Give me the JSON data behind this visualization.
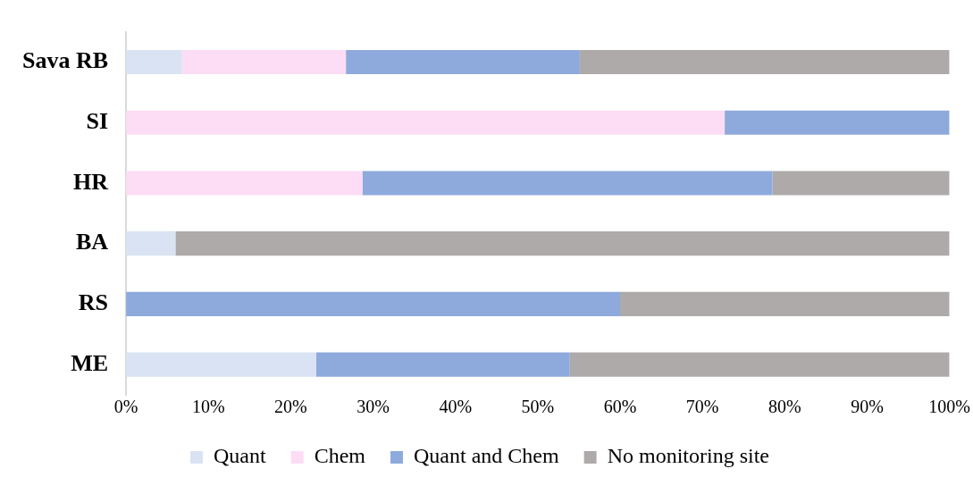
{
  "chart_data": {
    "type": "bar",
    "orientation": "horizontal",
    "stacked": true,
    "categories": [
      "Sava RB",
      "SI",
      "HR",
      "BA",
      "RS",
      "ME"
    ],
    "series": [
      {
        "name": "Quant",
        "color": "#dae3f3",
        "values": [
          6.8,
          0,
          0,
          6,
          0,
          23.1
        ]
      },
      {
        "name": "Chem",
        "color": "#fddcf5",
        "values": [
          19.9,
          72.7,
          28.7,
          0,
          0,
          0
        ]
      },
      {
        "name": "Quant and Chem",
        "color": "#8eaadc",
        "values": [
          28.4,
          27.3,
          49.8,
          0,
          60,
          30.8
        ]
      },
      {
        "name": "No monitoring site",
        "color": "#aeaaaa",
        "values": [
          44.9,
          0,
          21.5,
          94,
          40,
          46.1
        ]
      }
    ],
    "xlim": [
      0,
      100
    ],
    "xticks": [
      {
        "value": 0,
        "label": "0%"
      },
      {
        "value": 10,
        "label": "10%"
      },
      {
        "value": 20,
        "label": "20%"
      },
      {
        "value": 30,
        "label": "30%"
      },
      {
        "value": 40,
        "label": "40%"
      },
      {
        "value": 50,
        "label": "50%"
      },
      {
        "value": 60,
        "label": "60%"
      },
      {
        "value": 70,
        "label": "70%"
      },
      {
        "value": 80,
        "label": "80%"
      },
      {
        "value": 90,
        "label": "90%"
      },
      {
        "value": 100,
        "label": "100%"
      }
    ],
    "grid": false,
    "legend": "bottom"
  }
}
